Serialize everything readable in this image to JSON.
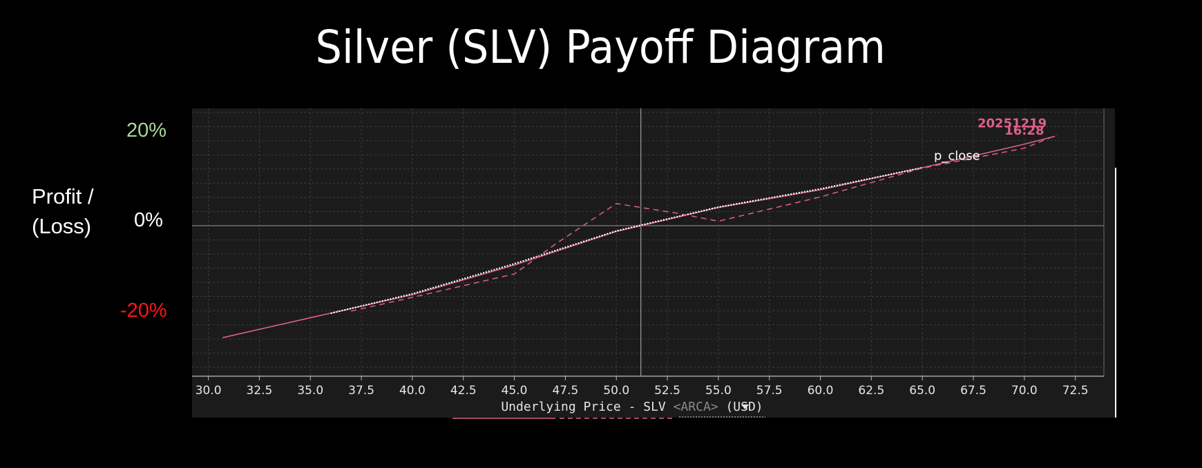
{
  "title": "Silver (SLV) Payoff Diagram",
  "ylabel_line1": "Profit /",
  "ylabel_line2": "(Loss)",
  "colors": {
    "background": "#000000",
    "plot_bg": "#1b1b1b",
    "grid": "#3c3c3c",
    "series": "#e0608a",
    "label": "#ffffff",
    "axis_text": "#e6e6e6",
    "axis_muted": "#8a8a8a",
    "positive": "#a8d89a",
    "negative": "#ff1414"
  },
  "chart_data": {
    "type": "line",
    "title": "Silver (SLV) Payoff Diagram",
    "xlabel_parts": [
      "Underlying Price - SLV",
      "<ARCA>",
      "(USD)"
    ],
    "ylabel": "Profit / (Loss)",
    "xlim": [
      29.2,
      73.9
    ],
    "ylim": [
      -34,
      26.5
    ],
    "xticks": [
      "30.0",
      "32.5",
      "35.0",
      "37.5",
      "40.0",
      "42.5",
      "45.0",
      "47.5",
      "50.0",
      "52.5",
      "55.0",
      "57.5",
      "60.0",
      "62.5",
      "65.0",
      "67.5",
      "70.0",
      "72.5"
    ],
    "yticks": [
      {
        "value": 20,
        "label": "20%"
      },
      {
        "value": 0,
        "label": "0%"
      },
      {
        "value": -20,
        "label": "-20%"
      }
    ],
    "grid": true,
    "current_price_line": 51.2,
    "series": [
      {
        "name": "20251219",
        "style": "solid",
        "color": "#e0608a",
        "points": [
          [
            30.7,
            -25.3
          ],
          [
            35.0,
            -20.8
          ],
          [
            40.0,
            -15.6
          ],
          [
            45.0,
            -8.9
          ],
          [
            50.0,
            -1.3
          ],
          [
            55.0,
            4.1
          ],
          [
            60.0,
            8.1
          ],
          [
            65.0,
            13.1
          ],
          [
            70.0,
            18.4
          ],
          [
            71.5,
            20.2
          ]
        ]
      },
      {
        "name": "p_close",
        "style": "dotted",
        "color": "#ffffff",
        "points": [
          [
            36.0,
            -19.8
          ],
          [
            40.0,
            -15.4
          ],
          [
            45.0,
            -8.6
          ],
          [
            50.0,
            -1.2
          ],
          [
            55.0,
            4.2
          ],
          [
            60.0,
            8.3
          ],
          [
            65.0,
            13.1
          ]
        ]
      },
      {
        "name": "16:28",
        "style": "dashed",
        "color": "#e0608a",
        "points": [
          [
            37.0,
            -19.3
          ],
          [
            40.0,
            -16.2
          ],
          [
            45.0,
            -10.9
          ],
          [
            47.0,
            -4.2
          ],
          [
            50.0,
            5.0
          ],
          [
            53.0,
            2.8
          ],
          [
            55.0,
            1.0
          ],
          [
            60.0,
            6.5
          ],
          [
            65.0,
            13.0
          ],
          [
            70.0,
            17.5
          ],
          [
            71.6,
            20.5
          ]
        ]
      }
    ],
    "annotations": [
      {
        "text": "20251219",
        "x": 69.4,
        "y": 22.2,
        "color": "#e0608a",
        "weight": "bold"
      },
      {
        "text": "16:28",
        "x": 70.0,
        "y": 20.6,
        "color": "#e0608a",
        "weight": "bold"
      },
      {
        "text": "p_close",
        "x": 66.7,
        "y": 14.9,
        "color": "#ffffff",
        "weight": "normal"
      }
    ]
  }
}
